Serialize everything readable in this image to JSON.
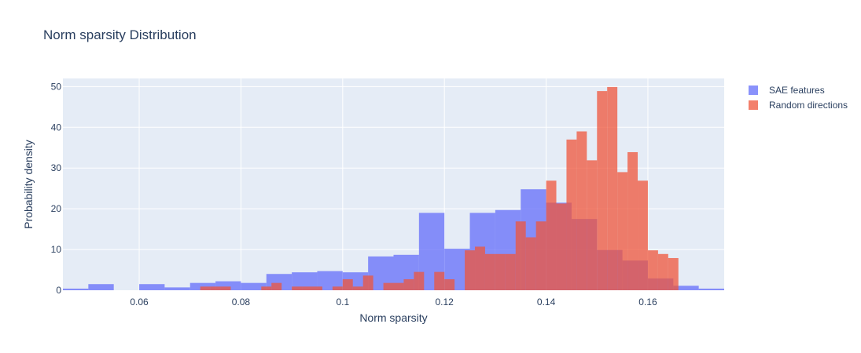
{
  "chart_data": {
    "type": "histogram",
    "title": "Norm sparsity Distribution",
    "xlabel": "Norm sparsity",
    "ylabel": "Probability density",
    "xlim": [
      0.045,
      0.175
    ],
    "ylim": [
      0,
      52
    ],
    "x_ticks": [
      0.06,
      0.08,
      0.1,
      0.12,
      0.14,
      0.16
    ],
    "x_tick_labels": [
      "0.06",
      "0.08",
      "0.1",
      "0.12",
      "0.14",
      "0.16"
    ],
    "y_ticks": [
      0,
      10,
      20,
      30,
      40,
      50
    ],
    "y_tick_labels": [
      "0",
      "10",
      "20",
      "30",
      "40",
      "50"
    ],
    "grid": true,
    "legend_position": "top-right",
    "colors": {
      "plot_background": "#e5ecf6",
      "grid": "#ffffff",
      "text": "#2a3f5f"
    },
    "series": [
      {
        "name": "SAE features",
        "color": "#636efa",
        "opacity": 0.75,
        "bins": [
          {
            "x0": 0.045,
            "x1": 0.05,
            "y": 0.4
          },
          {
            "x0": 0.05,
            "x1": 0.055,
            "y": 1.5
          },
          {
            "x0": 0.06,
            "x1": 0.065,
            "y": 1.5
          },
          {
            "x0": 0.065,
            "x1": 0.07,
            "y": 0.7
          },
          {
            "x0": 0.07,
            "x1": 0.075,
            "y": 1.8
          },
          {
            "x0": 0.075,
            "x1": 0.08,
            "y": 2.2
          },
          {
            "x0": 0.08,
            "x1": 0.085,
            "y": 1.8
          },
          {
            "x0": 0.085,
            "x1": 0.09,
            "y": 4.0
          },
          {
            "x0": 0.09,
            "x1": 0.095,
            "y": 4.4
          },
          {
            "x0": 0.095,
            "x1": 0.1,
            "y": 4.7
          },
          {
            "x0": 0.1,
            "x1": 0.105,
            "y": 4.4
          },
          {
            "x0": 0.105,
            "x1": 0.11,
            "y": 8.3
          },
          {
            "x0": 0.11,
            "x1": 0.115,
            "y": 8.7
          },
          {
            "x0": 0.115,
            "x1": 0.12,
            "y": 19.0
          },
          {
            "x0": 0.12,
            "x1": 0.125,
            "y": 10.2
          },
          {
            "x0": 0.125,
            "x1": 0.13,
            "y": 19.0
          },
          {
            "x0": 0.13,
            "x1": 0.135,
            "y": 19.7
          },
          {
            "x0": 0.135,
            "x1": 0.14,
            "y": 24.8
          },
          {
            "x0": 0.14,
            "x1": 0.145,
            "y": 21.5
          },
          {
            "x0": 0.145,
            "x1": 0.15,
            "y": 17.5
          },
          {
            "x0": 0.15,
            "x1": 0.155,
            "y": 9.9
          },
          {
            "x0": 0.155,
            "x1": 0.16,
            "y": 7.3
          },
          {
            "x0": 0.16,
            "x1": 0.165,
            "y": 2.9
          },
          {
            "x0": 0.165,
            "x1": 0.17,
            "y": 1.1
          },
          {
            "x0": 0.17,
            "x1": 0.175,
            "y": 0.4
          }
        ]
      },
      {
        "name": "Random directions",
        "color": "#ef553b",
        "opacity": 0.75,
        "bins": [
          {
            "x0": 0.072,
            "x1": 0.074,
            "y": 0.9
          },
          {
            "x0": 0.074,
            "x1": 0.076,
            "y": 0.9
          },
          {
            "x0": 0.076,
            "x1": 0.078,
            "y": 0.9
          },
          {
            "x0": 0.084,
            "x1": 0.086,
            "y": 0.9
          },
          {
            "x0": 0.086,
            "x1": 0.088,
            "y": 1.8
          },
          {
            "x0": 0.09,
            "x1": 0.092,
            "y": 0.9
          },
          {
            "x0": 0.092,
            "x1": 0.094,
            "y": 0.9
          },
          {
            "x0": 0.094,
            "x1": 0.096,
            "y": 0.9
          },
          {
            "x0": 0.098,
            "x1": 0.1,
            "y": 0.9
          },
          {
            "x0": 0.1,
            "x1": 0.102,
            "y": 2.7
          },
          {
            "x0": 0.102,
            "x1": 0.104,
            "y": 0.9
          },
          {
            "x0": 0.104,
            "x1": 0.106,
            "y": 3.6
          },
          {
            "x0": 0.108,
            "x1": 0.11,
            "y": 1.8
          },
          {
            "x0": 0.11,
            "x1": 0.112,
            "y": 1.8
          },
          {
            "x0": 0.112,
            "x1": 0.114,
            "y": 2.7
          },
          {
            "x0": 0.114,
            "x1": 0.116,
            "y": 4.5
          },
          {
            "x0": 0.118,
            "x1": 0.12,
            "y": 4.5
          },
          {
            "x0": 0.12,
            "x1": 0.122,
            "y": 2.7
          },
          {
            "x0": 0.124,
            "x1": 0.126,
            "y": 9.8
          },
          {
            "x0": 0.126,
            "x1": 0.128,
            "y": 10.7
          },
          {
            "x0": 0.128,
            "x1": 0.13,
            "y": 8.9
          },
          {
            "x0": 0.13,
            "x1": 0.132,
            "y": 8.9
          },
          {
            "x0": 0.132,
            "x1": 0.134,
            "y": 8.9
          },
          {
            "x0": 0.134,
            "x1": 0.136,
            "y": 16.9
          },
          {
            "x0": 0.136,
            "x1": 0.138,
            "y": 13.0
          },
          {
            "x0": 0.138,
            "x1": 0.14,
            "y": 16.9
          },
          {
            "x0": 0.14,
            "x1": 0.142,
            "y": 26.9
          },
          {
            "x0": 0.142,
            "x1": 0.144,
            "y": 21.3
          },
          {
            "x0": 0.144,
            "x1": 0.146,
            "y": 37.0
          },
          {
            "x0": 0.146,
            "x1": 0.148,
            "y": 39.0
          },
          {
            "x0": 0.148,
            "x1": 0.15,
            "y": 31.9
          },
          {
            "x0": 0.15,
            "x1": 0.152,
            "y": 48.9
          },
          {
            "x0": 0.152,
            "x1": 0.154,
            "y": 49.9
          },
          {
            "x0": 0.154,
            "x1": 0.156,
            "y": 29.0
          },
          {
            "x0": 0.156,
            "x1": 0.158,
            "y": 33.9
          },
          {
            "x0": 0.158,
            "x1": 0.16,
            "y": 26.9
          },
          {
            "x0": 0.16,
            "x1": 0.162,
            "y": 9.8
          },
          {
            "x0": 0.162,
            "x1": 0.164,
            "y": 8.9
          },
          {
            "x0": 0.164,
            "x1": 0.166,
            "y": 7.9
          }
        ]
      }
    ]
  }
}
